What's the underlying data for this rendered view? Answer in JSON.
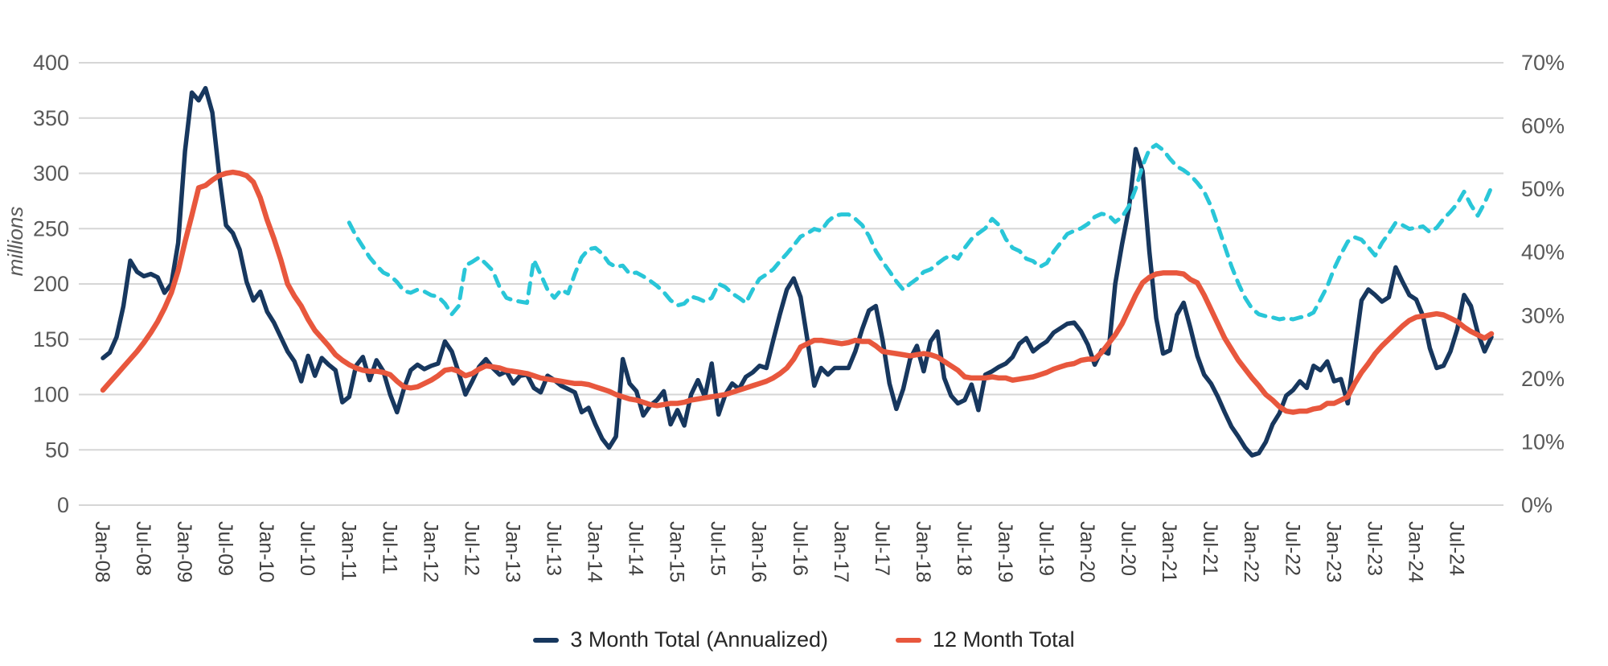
{
  "chart_data": {
    "type": "line",
    "title": "",
    "background": "#ffffff",
    "grid": true,
    "grid_color": "#d6d6d6",
    "left_axis": {
      "label": "millions",
      "min": 0,
      "max": 400,
      "tick_step": 50,
      "tick_labels": [
        "400",
        "350",
        "300",
        "250",
        "200",
        "150",
        "100",
        "50",
        "0"
      ]
    },
    "right_axis": {
      "min": 0,
      "max": 70,
      "tick_step": 10,
      "tick_labels": [
        "70%",
        "60%",
        "50%",
        "40%",
        "30%",
        "20%",
        "10%",
        "0%"
      ]
    },
    "x_axis": {
      "start_month": "Jan-08",
      "end_month": "Dec-24",
      "months_between_ticks": 6,
      "tick_labels": [
        "Jan-08",
        "Jul-08",
        "Jan-09",
        "Jul-09",
        "Jan-10",
        "Jul-10",
        "Jan-11",
        "Jul-11",
        "Jan-12",
        "Jul-12",
        "Jan-13",
        "Jul-13",
        "Jan-14",
        "Jul-14",
        "Jan-15",
        "Jul-15",
        "Jan-16",
        "Jul-16",
        "Jan-17",
        "Jul-17",
        "Jan-18",
        "Jul-18",
        "Jan-19",
        "Jul-19",
        "Jan-20",
        "Jul-20",
        "Jan-21",
        "Jul-21",
        "Jan-22",
        "Jul-22",
        "Jan-23",
        "Jul-23",
        "Jan-24",
        "Jul-24"
      ]
    },
    "legend": [
      {
        "label": "3 Month Total (Annualized)",
        "color": "#17375E"
      },
      {
        "label": "12 Month Total",
        "color": "#E8573D"
      }
    ],
    "series": [
      {
        "name": "3 Month Total (Annualized)",
        "axis": "left",
        "color": "#17375E",
        "style": "solid",
        "stroke_width": 5.5,
        "values": [
          133,
          138,
          152,
          180,
          221,
          211,
          207,
          209,
          206,
          192,
          200,
          237,
          320,
          373,
          366,
          377,
          355,
          299,
          253,
          246,
          231,
          202,
          185,
          193,
          175,
          165,
          152,
          139,
          130,
          112,
          135,
          117,
          133,
          127,
          122,
          93,
          98,
          126,
          134,
          113,
          131,
          121,
          100,
          84,
          105,
          122,
          127,
          123,
          126,
          128,
          148,
          139,
          120,
          100,
          112,
          125,
          132,
          124,
          118,
          121,
          110,
          117,
          118,
          106,
          102,
          117,
          113,
          108,
          105,
          102,
          84,
          88,
          73,
          60,
          52,
          62,
          132,
          110,
          103,
          81,
          90,
          95,
          103,
          73,
          86,
          72,
          100,
          113,
          98,
          128,
          82,
          100,
          110,
          105,
          116,
          120,
          126,
          124,
          149,
          173,
          195,
          205,
          188,
          149,
          108,
          124,
          118,
          124,
          124,
          124,
          139,
          159,
          176,
          180,
          149,
          110,
          87,
          105,
          132,
          144,
          121,
          148,
          157,
          115,
          99,
          92,
          95,
          109,
          86,
          118,
          121,
          125,
          128,
          134,
          146,
          151,
          139,
          144,
          148,
          156,
          160,
          164,
          165,
          157,
          145,
          127,
          140,
          137,
          200,
          236,
          268,
          322,
          302,
          229,
          169,
          137,
          140,
          172,
          183,
          160,
          135,
          118,
          110,
          98,
          84,
          71,
          62,
          52,
          45,
          47,
          57,
          73,
          83,
          99,
          104,
          112,
          106,
          126,
          122,
          130,
          112,
          114,
          92,
          139,
          185,
          195,
          190,
          184,
          188,
          215,
          202,
          190,
          186,
          171,
          142,
          124,
          126,
          139,
          159,
          190,
          180,
          156,
          139,
          152
        ]
      },
      {
        "name": "12 Month Total",
        "axis": "left",
        "color": "#E8573D",
        "style": "solid",
        "stroke_width": 6.5,
        "values": [
          104,
          111,
          118,
          125,
          132,
          139,
          147,
          156,
          166,
          178,
          192,
          212,
          238,
          262,
          287,
          289,
          294,
          298,
          300,
          301,
          300,
          298,
          292,
          278,
          258,
          241,
          222,
          200,
          189,
          180,
          168,
          158,
          151,
          144,
          136,
          131,
          127,
          124,
          122,
          121,
          121,
          120,
          118,
          112,
          107,
          106,
          107,
          110,
          113,
          117,
          122,
          123,
          121,
          117,
          119,
          123,
          126,
          125,
          124,
          122,
          121,
          120,
          119,
          117,
          115,
          114,
          113,
          112,
          111,
          110,
          110,
          109,
          107,
          105,
          103,
          100,
          98,
          96,
          95,
          93,
          91,
          90,
          91,
          92,
          92,
          93,
          95,
          96,
          97,
          98,
          99,
          100,
          102,
          104,
          106,
          108,
          110,
          112,
          115,
          119,
          124,
          132,
          143,
          146,
          149,
          149,
          148,
          147,
          146,
          147,
          149,
          148,
          148,
          144,
          139,
          138,
          137,
          136,
          135,
          136,
          137,
          136,
          134,
          130,
          126,
          122,
          116,
          115,
          115,
          115,
          116,
          115,
          115,
          113,
          114,
          115,
          116,
          118,
          120,
          123,
          125,
          127,
          128,
          131,
          132,
          132,
          138,
          146,
          154,
          164,
          177,
          190,
          201,
          206,
          209,
          210,
          210,
          210,
          209,
          204,
          201,
          190,
          177,
          164,
          151,
          141,
          131,
          123,
          115,
          108,
          100,
          95,
          89,
          85,
          84,
          85,
          85,
          87,
          88,
          92,
          92,
          95,
          98,
          110,
          120,
          128,
          137,
          144,
          150,
          156,
          162,
          167,
          170,
          171,
          172,
          173,
          172,
          169,
          166,
          161,
          157,
          154,
          151,
          155
        ]
      },
      {
        "name": "",
        "axis": "right",
        "color": "#29C6D8",
        "style": "dashed",
        "stroke_width": 5,
        "values": [
          null,
          null,
          null,
          null,
          null,
          null,
          null,
          null,
          null,
          null,
          null,
          null,
          null,
          null,
          null,
          null,
          null,
          null,
          null,
          null,
          null,
          null,
          null,
          null,
          null,
          null,
          null,
          null,
          null,
          null,
          null,
          null,
          null,
          null,
          null,
          null,
          44.7,
          42.6,
          40.9,
          39.2,
          37.9,
          36.8,
          36.3,
          35.3,
          33.9,
          33.6,
          34.1,
          33.8,
          33.2,
          33.0,
          31.9,
          30.2,
          31.5,
          37.9,
          38.5,
          39.2,
          38.2,
          37.1,
          34.5,
          32.8,
          32.4,
          32.2,
          32.0,
          38.8,
          36.5,
          34.1,
          32.8,
          34.1,
          33.5,
          36.6,
          39.2,
          40.5,
          40.7,
          39.8,
          38.3,
          37.7,
          37.9,
          36.6,
          36.8,
          36.2,
          35.5,
          34.7,
          33.7,
          32.4,
          31.6,
          31.9,
          33.0,
          32.7,
          32.2,
          32.8,
          35.0,
          34.5,
          33.5,
          32.8,
          32.0,
          34.1,
          35.8,
          36.5,
          37.3,
          38.6,
          39.8,
          41.1,
          42.5,
          43.0,
          43.7,
          43.4,
          44.9,
          45.8,
          46.0,
          46.0,
          45.3,
          44.3,
          42.6,
          40.2,
          38.5,
          37.0,
          35.4,
          34.1,
          35.0,
          35.8,
          36.9,
          37.3,
          38.2,
          39.0,
          39.6,
          39.0,
          40.7,
          42.1,
          43.0,
          43.8,
          45.3,
          44.3,
          42.1,
          40.7,
          40.2,
          39.0,
          38.6,
          37.7,
          38.3,
          40.1,
          41.5,
          42.9,
          43.4,
          43.8,
          44.5,
          45.6,
          46.1,
          45.9,
          44.8,
          45.6,
          47.3,
          50.1,
          53.7,
          56.3,
          57.0,
          56.2,
          54.8,
          53.6,
          53.0,
          52.2,
          51.0,
          49.6,
          47.3,
          44.2,
          41.0,
          37.8,
          35.1,
          32.8,
          31.1,
          30.2,
          29.9,
          29.7,
          29.4,
          29.6,
          29.4,
          29.7,
          29.9,
          30.5,
          32.5,
          34.6,
          37.4,
          39.7,
          41.7,
          42.4,
          42.0,
          40.8,
          39.5,
          41.5,
          43.0,
          44.7,
          44.3,
          43.7,
          43.9,
          44.1,
          43.2,
          43.9,
          45.3,
          46.4,
          47.7,
          49.6,
          47.5,
          45.8,
          47.8,
          50.3
        ]
      }
    ]
  }
}
